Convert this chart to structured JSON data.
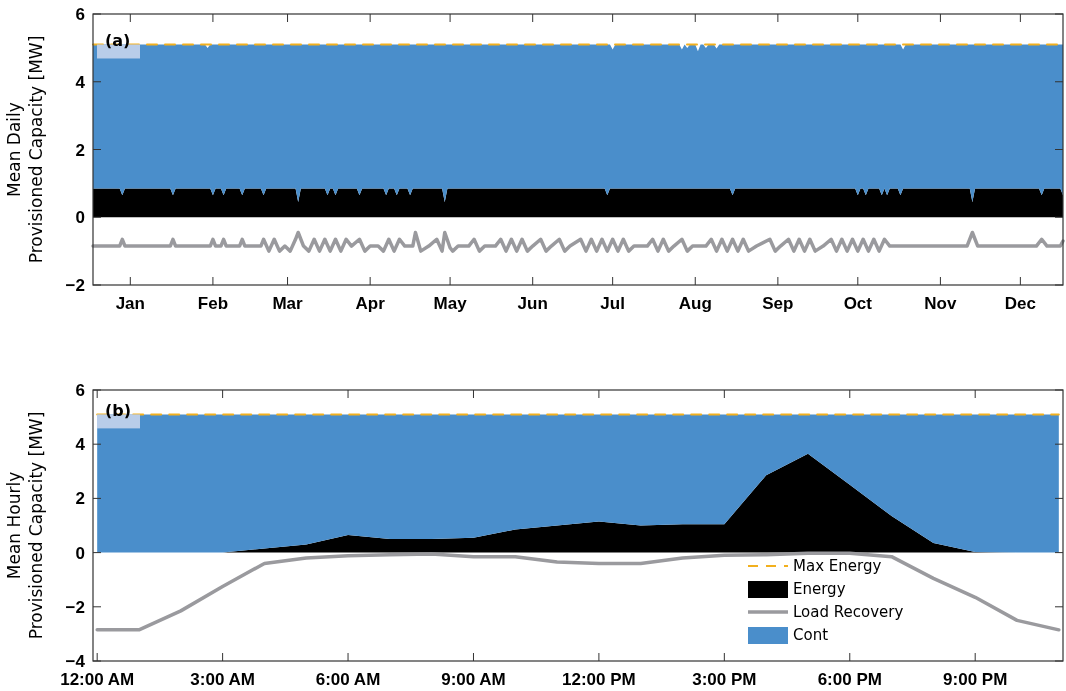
{
  "chart_data": [
    {
      "type": "area",
      "ylabel": "Mean Daily\nProvisioned Capacity [MW]",
      "annotations": [
        "(a)"
      ],
      "xlim": [
        "--01-01",
        "--12-31"
      ],
      "xticks": [
        {
          "value": "--01-15",
          "label": "Jan"
        },
        {
          "value": "--02-15",
          "label": "Feb"
        },
        {
          "value": "--03-15",
          "label": "Mar"
        },
        {
          "value": "--04-15",
          "label": "Apr"
        },
        {
          "value": "--05-15",
          "label": "May"
        },
        {
          "value": "--06-15",
          "label": "Jun"
        },
        {
          "value": "--07-15",
          "label": "Jul"
        },
        {
          "value": "--08-15",
          "label": "Aug"
        },
        {
          "value": "--09-15",
          "label": "Sep"
        },
        {
          "value": "--10-15",
          "label": "Oct"
        },
        {
          "value": "--11-15",
          "label": "Nov"
        },
        {
          "value": "--12-15",
          "label": "Dec"
        }
      ],
      "ylim": [
        -2,
        6
      ],
      "yticks": [
        -2,
        0,
        2,
        4,
        6
      ],
      "stacked": true,
      "legend": false,
      "x": [
        "--01-01",
        "--01-11",
        "--01-12",
        "--01-13",
        "--01-30",
        "--01-31",
        "--02-01",
        "--02-12",
        "--02-13",
        "--02-14",
        "--02-15",
        "--02-16",
        "--02-18",
        "--02-19",
        "--02-20",
        "--02-25",
        "--02-26",
        "--02-27",
        "--03-05",
        "--03-06",
        "--03-07",
        "--03-18",
        "--03-19",
        "--03-20",
        "--03-29",
        "--03-30",
        "--03-31",
        "--04-01",
        "--04-02",
        "--04-03",
        "--04-10",
        "--04-11",
        "--04-12",
        "--04-20",
        "--04-21",
        "--04-22",
        "--04-24",
        "--04-25",
        "--04-26",
        "--04-29",
        "--04-30",
        "--05-01",
        "--05-12",
        "--05-13",
        "--05-14",
        "--07-12",
        "--07-13",
        "--07-14",
        "--07-15",
        "--07-16",
        "--08-09",
        "--08-10",
        "--08-11",
        "--08-12",
        "--08-13",
        "--08-15",
        "--08-16",
        "--08-17",
        "--08-18",
        "--08-19",
        "--08-20",
        "--08-22",
        "--08-23",
        "--08-24",
        "--08-28",
        "--08-29",
        "--08-30",
        "--10-14",
        "--10-15",
        "--10-16",
        "--10-17",
        "--10-18",
        "--10-19",
        "--10-23",
        "--10-24",
        "--10-25",
        "--10-26",
        "--10-27",
        "--10-30",
        "--10-31",
        "--11-01",
        "--11-02",
        "--11-26",
        "--11-27",
        "--11-28",
        "--12-22",
        "--12-23",
        "--12-24",
        "--12-30",
        "--12-31"
      ],
      "series": [
        {
          "type": "line",
          "line_style": "dashed",
          "color": "#f2b01e",
          "x": [
            "--01-01",
            "--12-31"
          ],
          "values": [
            5.1,
            5.1
          ]
        },
        {
          "type": "area",
          "color": "#000000",
          "values": [
            0.85,
            0.85,
            0.65,
            0.85,
            0.85,
            0.65,
            0.85,
            0.85,
            0.85,
            0.85,
            0.65,
            0.85,
            0.85,
            0.65,
            0.85,
            0.85,
            0.65,
            0.85,
            0.85,
            0.65,
            0.85,
            0.85,
            0.45,
            0.85,
            0.85,
            0.65,
            0.85,
            0.85,
            0.65,
            0.85,
            0.85,
            0.65,
            0.85,
            0.85,
            0.65,
            0.85,
            0.85,
            0.65,
            0.85,
            0.85,
            0.65,
            0.85,
            0.85,
            0.45,
            0.85,
            0.85,
            0.65,
            0.85,
            0.85,
            0.85,
            0.85,
            0.85,
            0.85,
            0.85,
            0.85,
            0.85,
            0.85,
            0.85,
            0.85,
            0.85,
            0.85,
            0.85,
            0.85,
            0.85,
            0.85,
            0.65,
            0.85,
            0.85,
            0.65,
            0.85,
            0.85,
            0.65,
            0.85,
            0.85,
            0.65,
            0.85,
            0.65,
            0.85,
            0.85,
            0.65,
            0.85,
            0.85,
            0.85,
            0.45,
            0.85,
            0.85,
            0.65,
            0.85,
            0.85,
            0.65
          ]
        },
        {
          "type": "line",
          "color": "#9a9a9e",
          "x": [
            "--01-01",
            "--01-11",
            "--01-12",
            "--01-13",
            "--01-30",
            "--01-31",
            "--02-01",
            "--02-14",
            "--02-15",
            "--02-16",
            "--02-18",
            "--02-19",
            "--02-20",
            "--02-25",
            "--02-26",
            "--02-27",
            "--03-05",
            "--03-06",
            "--03-08",
            "--03-10",
            "--03-12",
            "--03-14",
            "--03-16",
            "--03-18",
            "--03-19",
            "--03-21",
            "--03-23",
            "--03-25",
            "--03-27",
            "--03-29",
            "--03-31",
            "--04-02",
            "--04-04",
            "--04-06",
            "--04-08",
            "--04-11",
            "--04-13",
            "--04-15",
            "--04-18",
            "--04-20",
            "--04-22",
            "--04-24",
            "--04-26",
            "--04-28",
            "--05-01",
            "--05-02",
            "--05-04",
            "--05-07",
            "--05-10",
            "--05-12",
            "--05-13",
            "--05-15",
            "--05-16",
            "--05-18",
            "--05-22",
            "--05-24",
            "--05-26",
            "--05-28",
            "--06-01",
            "--06-03",
            "--06-05",
            "--06-07",
            "--06-09",
            "--06-11",
            "--06-13",
            "--06-15",
            "--06-18",
            "--06-20",
            "--06-22",
            "--06-25",
            "--06-27",
            "--06-29",
            "--07-03",
            "--07-05",
            "--07-07",
            "--07-09",
            "--07-11",
            "--07-13",
            "--07-15",
            "--07-17",
            "--07-19",
            "--07-21",
            "--07-23",
            "--07-28",
            "--07-30",
            "--08-01",
            "--08-03",
            "--08-05",
            "--08-07",
            "--08-10",
            "--08-12",
            "--08-14",
            "--08-19",
            "--08-21",
            "--08-23",
            "--08-25",
            "--08-27",
            "--08-29",
            "--08-31",
            "--09-02",
            "--09-04",
            "--09-07",
            "--09-12",
            "--09-14",
            "--09-16",
            "--09-19",
            "--09-21",
            "--09-23",
            "--09-25",
            "--09-27",
            "--09-29",
            "--10-02",
            "--10-05",
            "--10-07",
            "--10-09",
            "--10-11",
            "--10-13",
            "--10-15",
            "--10-17",
            "--10-19",
            "--10-21",
            "--10-23",
            "--10-25",
            "--10-27",
            "--11-25",
            "--11-27",
            "--11-29",
            "--12-21",
            "--12-23",
            "--12-25",
            "--12-30",
            "--12-31"
          ],
          "values": [
            -0.85,
            -0.85,
            -0.65,
            -0.85,
            -0.85,
            -0.65,
            -0.85,
            -0.85,
            -0.65,
            -0.85,
            -0.85,
            -0.65,
            -0.85,
            -0.85,
            -0.65,
            -0.85,
            -0.85,
            -0.65,
            -1.0,
            -0.65,
            -1.0,
            -0.85,
            -1.0,
            -0.65,
            -0.45,
            -0.85,
            -1.0,
            -0.65,
            -1.0,
            -0.65,
            -1.0,
            -0.65,
            -1.0,
            -0.65,
            -0.85,
            -0.65,
            -1.0,
            -0.85,
            -0.85,
            -1.0,
            -0.65,
            -1.0,
            -0.65,
            -0.85,
            -0.85,
            -0.45,
            -1.0,
            -0.85,
            -0.65,
            -1.0,
            -0.45,
            -0.9,
            -1.0,
            -0.85,
            -0.85,
            -0.65,
            -1.0,
            -0.85,
            -0.85,
            -0.65,
            -1.0,
            -0.65,
            -1.0,
            -0.65,
            -1.0,
            -0.85,
            -0.65,
            -1.0,
            -0.85,
            -0.65,
            -1.0,
            -0.85,
            -0.65,
            -1.0,
            -0.65,
            -1.0,
            -0.65,
            -1.0,
            -0.65,
            -1.0,
            -0.65,
            -1.0,
            -0.85,
            -0.85,
            -0.65,
            -1.0,
            -0.65,
            -1.0,
            -0.85,
            -0.65,
            -1.0,
            -0.85,
            -0.85,
            -0.65,
            -1.0,
            -0.65,
            -1.0,
            -0.65,
            -1.0,
            -0.65,
            -1.0,
            -0.85,
            -0.65,
            -1.0,
            -0.85,
            -0.65,
            -1.0,
            -0.65,
            -1.0,
            -0.65,
            -1.0,
            -0.85,
            -0.65,
            -1.0,
            -0.65,
            -1.0,
            -0.65,
            -1.0,
            -0.65,
            -1.0,
            -0.65,
            -1.0,
            -0.65,
            -0.85,
            -0.85,
            -0.45,
            -0.85,
            -0.85,
            -0.65,
            -0.85,
            -0.85,
            -0.7
          ]
        },
        {
          "type": "area",
          "color": "#4a8ecb",
          "values": [
            4.25,
            4.25,
            4.45,
            4.25,
            4.25,
            4.45,
            4.25,
            4.25,
            4.15,
            4.25,
            4.45,
            4.25,
            4.25,
            4.45,
            4.25,
            4.25,
            4.45,
            4.25,
            4.25,
            4.45,
            4.25,
            4.25,
            4.65,
            4.25,
            4.25,
            4.45,
            4.25,
            4.25,
            4.45,
            4.25,
            4.25,
            4.45,
            4.25,
            4.25,
            4.45,
            4.25,
            4.25,
            4.45,
            4.25,
            4.25,
            4.45,
            4.25,
            4.25,
            4.65,
            4.25,
            4.25,
            4.45,
            4.25,
            4.1,
            4.25,
            4.25,
            4.1,
            4.25,
            4.15,
            4.25,
            4.25,
            4.05,
            4.25,
            4.25,
            4.15,
            4.25,
            4.25,
            4.13,
            4.25,
            4.25,
            4.45,
            4.25,
            4.25,
            4.45,
            4.25,
            4.25,
            4.45,
            4.25,
            4.25,
            4.45,
            4.25,
            4.45,
            4.25,
            4.25,
            4.45,
            4.1,
            4.25,
            4.25,
            4.65,
            4.25,
            4.25,
            4.45,
            4.25,
            4.25,
            4.45
          ]
        }
      ]
    },
    {
      "type": "area",
      "ylabel": "Mean Hourly\nProvisioned Capacity [MW]",
      "annotations": [
        "(b)"
      ],
      "xlim": [
        -0.1,
        23.1
      ],
      "xticks": [
        {
          "value": 0,
          "label": "12:00 AM"
        },
        {
          "value": 3,
          "label": "3:00 AM"
        },
        {
          "value": 6,
          "label": "6:00 AM"
        },
        {
          "value": 9,
          "label": "9:00 AM"
        },
        {
          "value": 12,
          "label": "12:00 PM"
        },
        {
          "value": 15,
          "label": "3:00 PM"
        },
        {
          "value": 18,
          "label": "6:00 PM"
        },
        {
          "value": 21,
          "label": "9:00 PM"
        }
      ],
      "ylim": [
        -4,
        6
      ],
      "yticks": [
        -4,
        -2,
        0,
        2,
        4,
        6
      ],
      "stacked": true,
      "legend": "bottom right",
      "x": [
        0,
        1,
        2,
        3,
        4,
        5,
        6,
        7,
        8,
        9,
        10,
        11,
        12,
        13,
        14,
        15,
        16,
        17,
        18,
        19,
        20,
        21,
        22,
        23
      ],
      "series": [
        {
          "name": "Max Energy",
          "type": "line",
          "line_style": "dashed",
          "color": "#f2b01e",
          "x": [
            0,
            23
          ],
          "values": [
            5.1,
            5.1
          ]
        },
        {
          "name": "Energy",
          "type": "area",
          "color": "#000000",
          "values": [
            0,
            0,
            0,
            0,
            0.15,
            0.3,
            0.65,
            0.5,
            0.5,
            0.55,
            0.85,
            1.0,
            1.15,
            1.0,
            1.05,
            1.05,
            2.85,
            3.65,
            2.5,
            1.35,
            0.35,
            0.02,
            0,
            0
          ]
        },
        {
          "name": "Load Recovery",
          "type": "line",
          "color": "#9a9a9e",
          "values": [
            -2.85,
            -2.85,
            -2.15,
            -1.25,
            -0.4,
            -0.2,
            -0.12,
            -0.08,
            -0.05,
            -0.15,
            -0.15,
            -0.35,
            -0.4,
            -0.4,
            -0.2,
            -0.1,
            -0.08,
            -0.02,
            -0.02,
            -0.15,
            -0.95,
            -1.65,
            -2.5,
            -2.85
          ]
        },
        {
          "name": "Cont",
          "type": "area",
          "color": "#4a8ecb",
          "values": [
            5.1,
            5.1,
            5.1,
            5.1,
            4.95,
            4.8,
            4.45,
            4.6,
            4.6,
            4.55,
            4.25,
            4.1,
            3.95,
            4.1,
            4.05,
            4.05,
            2.25,
            1.45,
            2.6,
            3.75,
            4.75,
            5.08,
            5.1,
            5.1
          ]
        }
      ]
    }
  ]
}
